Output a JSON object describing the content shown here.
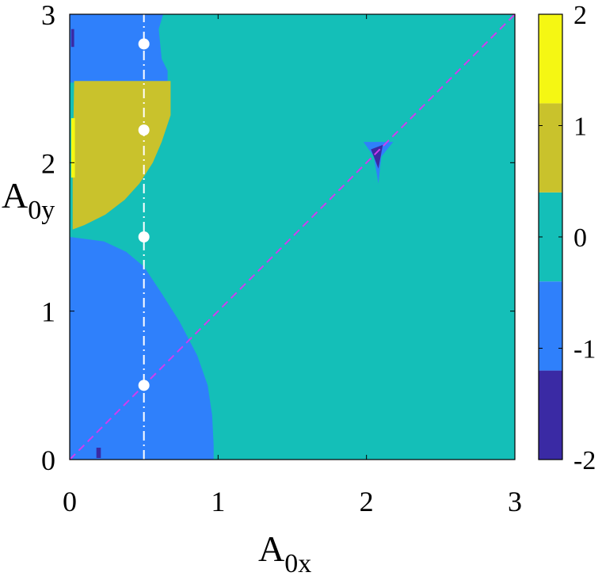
{
  "chart_data": {
    "type": "heatmap",
    "title": "",
    "xlabel": {
      "main": "A",
      "sub": "0x"
    },
    "ylabel": {
      "main": "A",
      "sub": "0y"
    },
    "xlim": [
      0,
      3
    ],
    "ylim": [
      0,
      3
    ],
    "x_ticks": [
      "0",
      "1",
      "2",
      "3"
    ],
    "y_ticks": [
      "0",
      "1",
      "2",
      "3"
    ],
    "grid": false,
    "colorbar": {
      "range": [
        -2,
        2
      ],
      "levels": [
        {
          "value": -2,
          "color": "#3a2aa4"
        },
        {
          "value": -1,
          "color": "#2f80fb"
        },
        {
          "value": 0,
          "color": "#14bfb8"
        },
        {
          "value": 1,
          "color": "#c9c22c"
        },
        {
          "value": 2,
          "color": "#f5f713"
        }
      ],
      "tick_labels": [
        "2",
        "1",
        "0",
        "-1",
        "-2"
      ]
    },
    "regions": [
      {
        "value": 0,
        "description": "background"
      },
      {
        "value": -1,
        "description": "lower-left quarter disk, radius about 0.97 centred at origin"
      },
      {
        "value": 1,
        "description": "left lobe, A0y from about 1.55 to 2.55"
      },
      {
        "value": -1,
        "description": "top-left region, A0y above about 2.55"
      },
      {
        "value": 2,
        "description": "thin strip near A0x = 0.02, A0y 1.9 to 2.3"
      },
      {
        "value": -2,
        "description": "small wedge near (2.08, 2.1)"
      }
    ],
    "lines": [
      {
        "type": "diagonal",
        "style": "dashed",
        "color": "#d23cf0",
        "points": [
          [
            0,
            0
          ],
          [
            3,
            3
          ]
        ]
      },
      {
        "type": "vertical",
        "style": "dash-dot",
        "color": "#ffffff",
        "x": 0.5
      }
    ],
    "markers": {
      "color": "#ffffff",
      "points": [
        {
          "x": 0.5,
          "y": 2.8
        },
        {
          "x": 0.5,
          "y": 2.22
        },
        {
          "x": 0.5,
          "y": 1.5
        },
        {
          "x": 0.5,
          "y": 0.5
        }
      ]
    }
  }
}
